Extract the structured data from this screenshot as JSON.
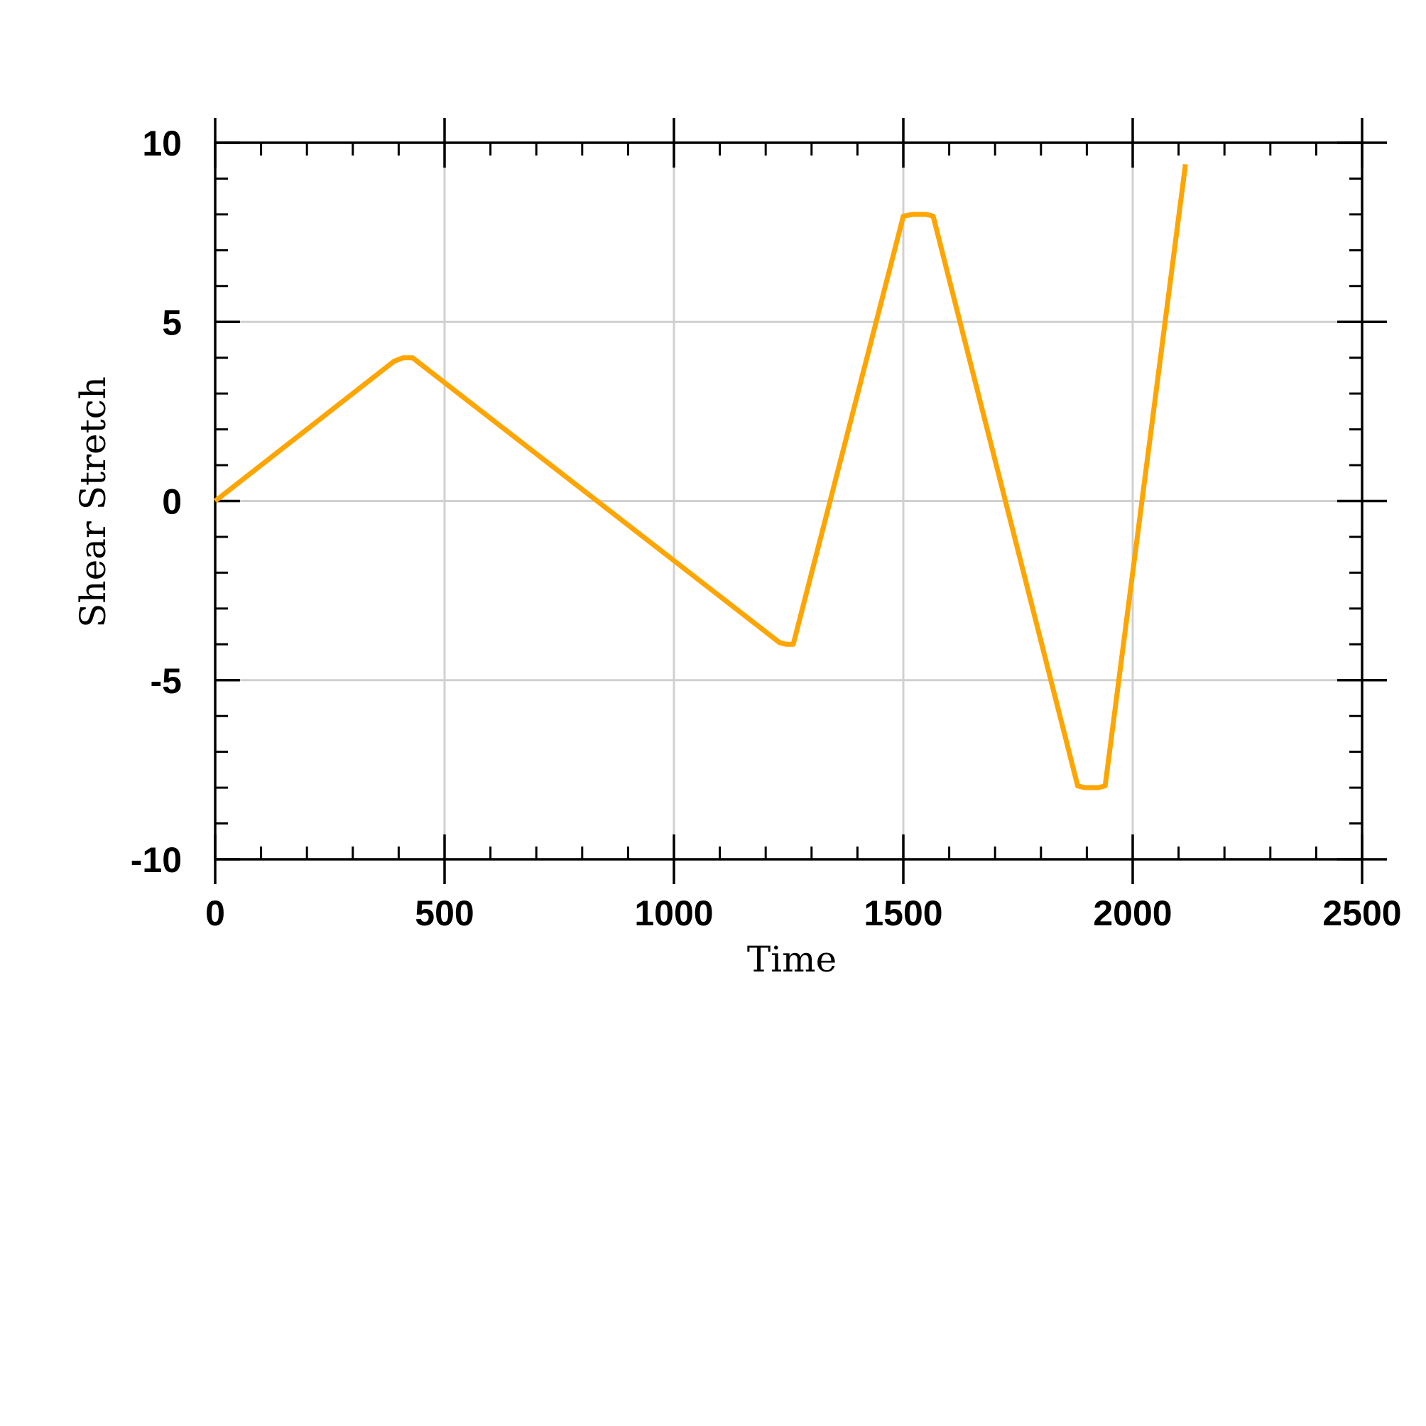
{
  "chart_data": {
    "type": "line",
    "title": "",
    "xlabel": "Time",
    "ylabel": "Shear Stretch",
    "xlim": [
      0,
      2500
    ],
    "ylim": [
      -10,
      10
    ],
    "x_ticks": [
      0,
      500,
      1000,
      1500,
      2000,
      2500
    ],
    "x_tick_labels": [
      "0",
      "500",
      "1000",
      "1500",
      "2000",
      "2500"
    ],
    "y_ticks": [
      10,
      5,
      0,
      -5,
      -10
    ],
    "y_tick_labels": [
      "10",
      "5",
      "0",
      "-5",
      "-10"
    ],
    "x_minor_step": 100,
    "y_minor_step": 1,
    "grid": true,
    "legend": "none",
    "series": [
      {
        "color": "#FFA500",
        "x": [
          0,
          390,
          410,
          430,
          1230,
          1245,
          1260,
          1500,
          1520,
          1550,
          1565,
          1880,
          1895,
          1925,
          1940,
          2115
        ],
        "y": [
          0,
          3.9,
          4.0,
          4.0,
          -3.95,
          -4.0,
          -4.0,
          7.95,
          8.0,
          8.0,
          7.95,
          -7.95,
          -8.0,
          -8.0,
          -7.95,
          9.4
        ]
      }
    ]
  }
}
